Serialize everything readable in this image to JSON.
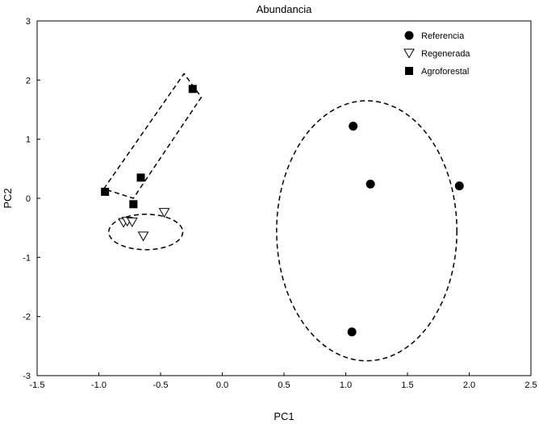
{
  "chart_data": {
    "type": "scatter",
    "title": "Abundancia",
    "xlabel": "PC1",
    "ylabel": "PC2",
    "xlim": [
      -1.5,
      2.5
    ],
    "ylim": [
      -3,
      3
    ],
    "xticks": [
      "-1.5",
      "-1.0",
      "-0.5",
      "0.0",
      "0.5",
      "1.0",
      "1.5",
      "2.0",
      "2.5"
    ],
    "yticks": [
      "-3",
      "-2",
      "-1",
      "0",
      "1",
      "2",
      "3"
    ],
    "grid": false,
    "legend_position": "top-right",
    "series": [
      {
        "name": "Referencia",
        "marker": "filled-circle",
        "points": [
          [
            1.06,
            1.22
          ],
          [
            1.2,
            0.24
          ],
          [
            1.92,
            0.21
          ],
          [
            1.05,
            -2.26
          ]
        ]
      },
      {
        "name": "Regenerada",
        "marker": "open-triangle-down",
        "points": [
          [
            -0.8,
            -0.41
          ],
          [
            -0.77,
            -0.39
          ],
          [
            -0.73,
            -0.4
          ],
          [
            -0.47,
            -0.24
          ],
          [
            -0.64,
            -0.64
          ]
        ]
      },
      {
        "name": "Agroforestal",
        "marker": "filled-square",
        "points": [
          [
            -0.24,
            1.85
          ],
          [
            -0.66,
            0.35
          ],
          [
            -0.95,
            0.11
          ],
          [
            -0.72,
            -0.1
          ]
        ]
      }
    ],
    "group_outlines": [
      {
        "group": "Referencia",
        "shape": "dashed-ellipse",
        "center": [
          1.17,
          -0.55
        ],
        "rx": 0.73,
        "ry": 2.2
      },
      {
        "group": "Regenerada",
        "shape": "dashed-ellipse",
        "center": [
          -0.62,
          -0.57
        ],
        "rx": 0.3,
        "ry": 0.3
      },
      {
        "group": "Agroforestal",
        "shape": "dashed-rotated-box",
        "path": [
          [
            -0.96,
            0.16
          ],
          [
            -0.31,
            2.11
          ],
          [
            -0.17,
            1.71
          ],
          [
            -0.72,
            0.0
          ],
          [
            -0.96,
            0.16
          ]
        ]
      }
    ]
  },
  "colors": {
    "axis": "#000000",
    "marker": "#000000",
    "background": "#ffffff"
  }
}
